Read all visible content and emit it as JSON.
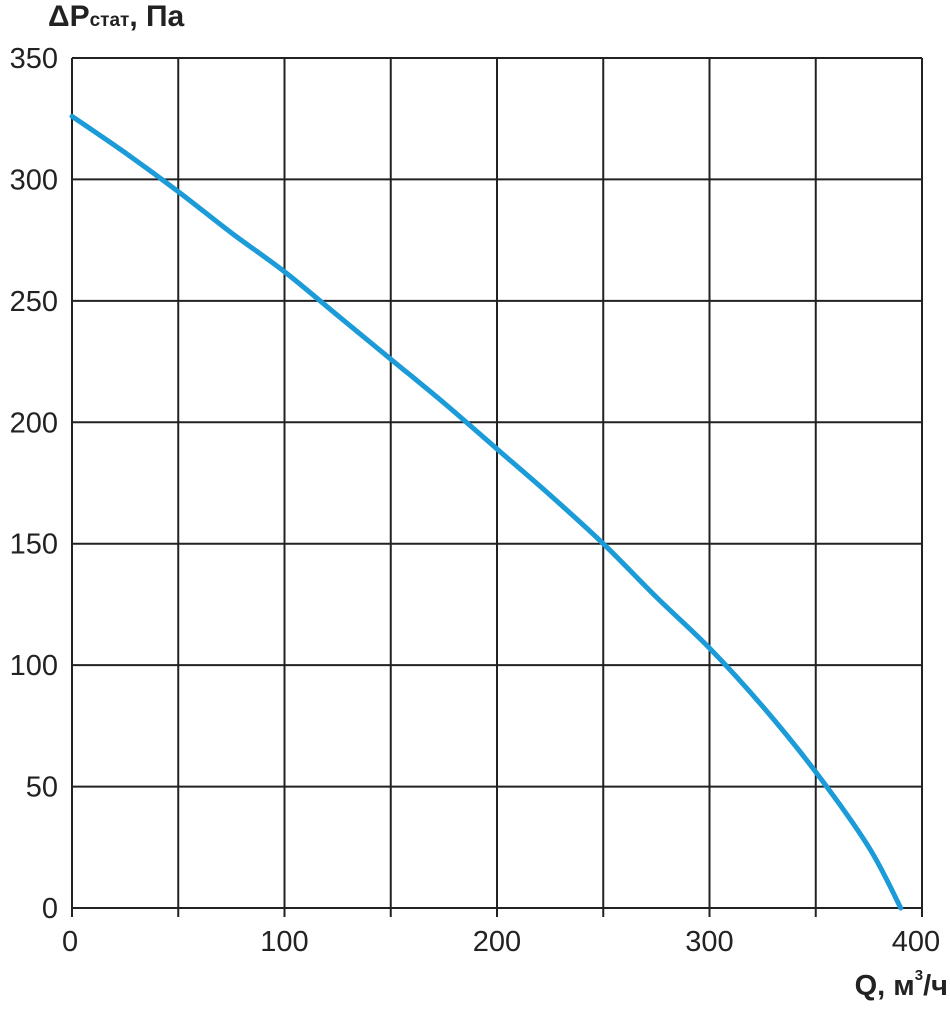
{
  "chart_data": {
    "type": "line",
    "title": "",
    "ylabel": {
      "main": "ΔP",
      "sub": "стат",
      "unit": ", Па"
    },
    "xlabel": {
      "main": "Q, м",
      "sup": "3",
      "unit": "/ч"
    },
    "xlim": [
      0,
      400
    ],
    "ylim": [
      0,
      350
    ],
    "xticks": [
      0,
      100,
      200,
      300,
      400
    ],
    "yticks": [
      0,
      50,
      100,
      150,
      200,
      250,
      300,
      350
    ],
    "grid": true,
    "grid_step": {
      "x": 50,
      "y": 50
    },
    "series": [
      {
        "color": "#1b9bd7",
        "x": [
          0,
          25,
          50,
          75,
          100,
          125,
          150,
          175,
          200,
          225,
          250,
          275,
          300,
          325,
          350,
          375,
          390
        ],
        "y": [
          326,
          311,
          295,
          278,
          262,
          244,
          226,
          208,
          189,
          170,
          150,
          128,
          107,
          83,
          56,
          25,
          0
        ]
      }
    ]
  }
}
